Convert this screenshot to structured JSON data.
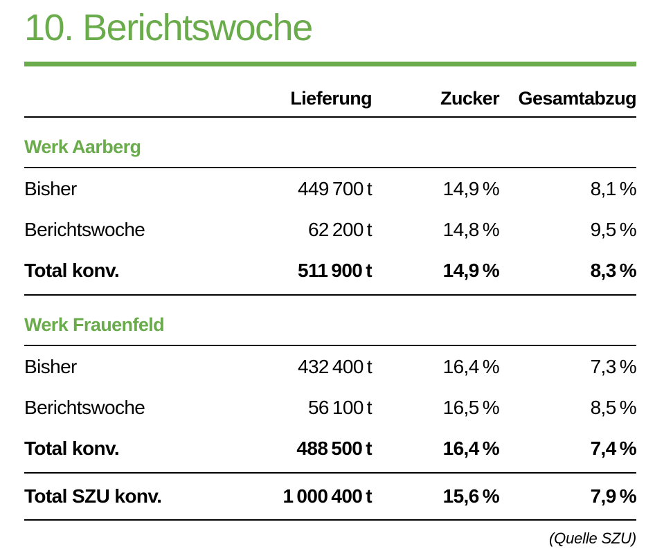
{
  "colors": {
    "accent_green": "#6aab4c"
  },
  "title": "10. Berichtswoche",
  "source_note": "(Quelle SZU)",
  "table": {
    "columns": [
      "",
      "Lieferung",
      "Zucker",
      "Gesamtabzug"
    ],
    "sections": [
      {
        "heading": "Werk Aarberg",
        "rows": [
          {
            "label": "Bisher",
            "lieferung": "449 700 t",
            "zucker": "14,9 %",
            "gesamtabzug": "8,1 %"
          },
          {
            "label": "Berichtswoche",
            "lieferung": "62 200 t",
            "zucker": "14,8 %",
            "gesamtabzug": "9,5 %"
          },
          {
            "label": "Total konv.",
            "lieferung": "511 900 t",
            "zucker": "14,9 %",
            "gesamtabzug": "8,3 %"
          }
        ]
      },
      {
        "heading": "Werk Frauenfeld",
        "rows": [
          {
            "label": "Bisher",
            "lieferung": "432 400 t",
            "zucker": "16,4 %",
            "gesamtabzug": "7,3 %"
          },
          {
            "label": "Berichtswoche",
            "lieferung": "56 100 t",
            "zucker": "16,5 %",
            "gesamtabzug": "8,5 %"
          },
          {
            "label": "Total konv.",
            "lieferung": "488 500 t",
            "zucker": "16,4 %",
            "gesamtabzug": "7,4 %"
          }
        ]
      }
    ],
    "grand_total": {
      "label": "Total SZU konv.",
      "lieferung": "1 000 400 t",
      "zucker": "15,6 %",
      "gesamtabzug": "7,9 %"
    }
  }
}
